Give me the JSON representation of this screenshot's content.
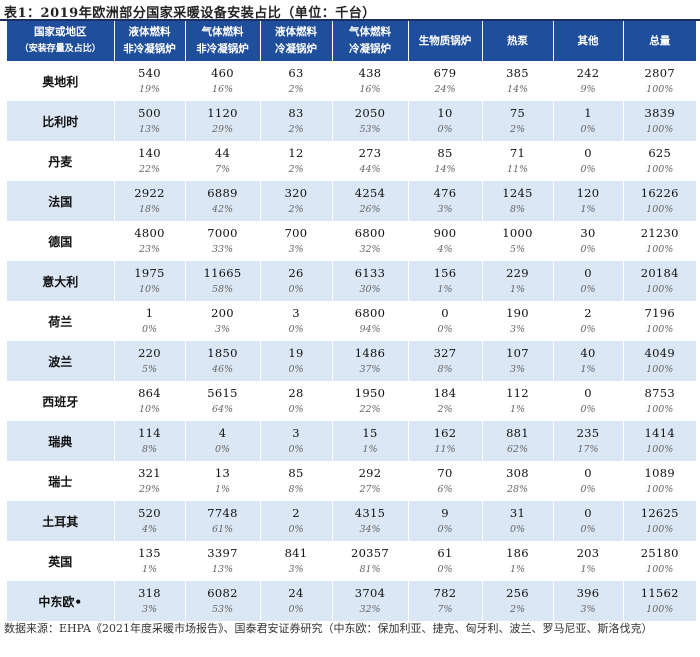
{
  "title": "表1：2019年欧洲部分国家采暖设备安装占比（单位：千台）",
  "header": {
    "region": "国家或地区",
    "region_sub": "（安装存量及占比）",
    "col1_line1": "液体燃料",
    "col1_line2": "非冷凝锅炉",
    "col2_line1": "气体燃料",
    "col2_line2": "非冷凝锅炉",
    "col3_line1": "液体燃料",
    "col3_line2": "冷凝锅炉",
    "col4_line1": "气体燃料",
    "col4_line2": "冷凝锅炉",
    "col5": "生物质锅炉",
    "col6": "热泵",
    "col7": "其他",
    "col8": "总量"
  },
  "rows": [
    {
      "name": "奥地利",
      "v": [
        "540",
        "460",
        "63",
        "438",
        "679",
        "385",
        "242",
        "2807"
      ],
      "p": [
        "19%",
        "16%",
        "2%",
        "16%",
        "24%",
        "14%",
        "9%",
        "100%"
      ]
    },
    {
      "name": "比利时",
      "v": [
        "500",
        "1120",
        "83",
        "2050",
        "10",
        "75",
        "1",
        "3839"
      ],
      "p": [
        "13%",
        "29%",
        "2%",
        "53%",
        "0%",
        "2%",
        "0%",
        "100%"
      ]
    },
    {
      "name": "丹麦",
      "v": [
        "140",
        "44",
        "12",
        "273",
        "85",
        "71",
        "0",
        "625"
      ],
      "p": [
        "22%",
        "7%",
        "2%",
        "44%",
        "14%",
        "11%",
        "0%",
        "100%"
      ]
    },
    {
      "name": "法国",
      "v": [
        "2922",
        "6889",
        "320",
        "4254",
        "476",
        "1245",
        "120",
        "16226"
      ],
      "p": [
        "18%",
        "42%",
        "2%",
        "26%",
        "3%",
        "8%",
        "1%",
        "100%"
      ]
    },
    {
      "name": "德国",
      "v": [
        "4800",
        "7000",
        "700",
        "6800",
        "900",
        "1000",
        "30",
        "21230"
      ],
      "p": [
        "23%",
        "33%",
        "3%",
        "32%",
        "4%",
        "5%",
        "0%",
        "100%"
      ]
    },
    {
      "name": "意大利",
      "v": [
        "1975",
        "11665",
        "26",
        "6133",
        "156",
        "229",
        "0",
        "20184"
      ],
      "p": [
        "10%",
        "58%",
        "0%",
        "30%",
        "1%",
        "1%",
        "0%",
        "100%"
      ]
    },
    {
      "name": "荷兰",
      "v": [
        "1",
        "200",
        "3",
        "6800",
        "0",
        "190",
        "2",
        "7196"
      ],
      "p": [
        "0%",
        "3%",
        "0%",
        "94%",
        "0%",
        "3%",
        "0%",
        "100%"
      ]
    },
    {
      "name": "波兰",
      "v": [
        "220",
        "1850",
        "19",
        "1486",
        "327",
        "107",
        "40",
        "4049"
      ],
      "p": [
        "5%",
        "46%",
        "0%",
        "37%",
        "8%",
        "3%",
        "1%",
        "100%"
      ]
    },
    {
      "name": "西班牙",
      "v": [
        "864",
        "5615",
        "28",
        "1950",
        "184",
        "112",
        "0",
        "8753"
      ],
      "p": [
        "10%",
        "64%",
        "0%",
        "22%",
        "2%",
        "1%",
        "0%",
        "100%"
      ]
    },
    {
      "name": "瑞典",
      "v": [
        "114",
        "4",
        "3",
        "15",
        "162",
        "881",
        "235",
        "1414"
      ],
      "p": [
        "8%",
        "0%",
        "0%",
        "1%",
        "11%",
        "62%",
        "17%",
        "100%"
      ]
    },
    {
      "name": "瑞士",
      "v": [
        "321",
        "13",
        "85",
        "292",
        "70",
        "308",
        "0",
        "1089"
      ],
      "p": [
        "29%",
        "1%",
        "8%",
        "27%",
        "6%",
        "28%",
        "0%",
        "100%"
      ]
    },
    {
      "name": "土耳其",
      "v": [
        "520",
        "7748",
        "2",
        "4315",
        "9",
        "31",
        "0",
        "12625"
      ],
      "p": [
        "4%",
        "61%",
        "0%",
        "34%",
        "0%",
        "0%",
        "0%",
        "100%"
      ]
    },
    {
      "name": "英国",
      "v": [
        "135",
        "3397",
        "841",
        "20357",
        "61",
        "186",
        "203",
        "25180"
      ],
      "p": [
        "1%",
        "13%",
        "3%",
        "81%",
        "0%",
        "1%",
        "1%",
        "100%"
      ]
    },
    {
      "name": "中东欧•",
      "v": [
        "318",
        "6082",
        "24",
        "3704",
        "782",
        "256",
        "396",
        "11562"
      ],
      "p": [
        "3%",
        "53%",
        "0%",
        "32%",
        "7%",
        "2%",
        "3%",
        "100%"
      ]
    }
  ],
  "source_note": "数据来源：EHPA《2021年度采暖市场报告》、国泰君安证券研究（中东欧：保加利亚、捷克、匈牙利、波兰、罗马尼亚、斯洛伐克）"
}
